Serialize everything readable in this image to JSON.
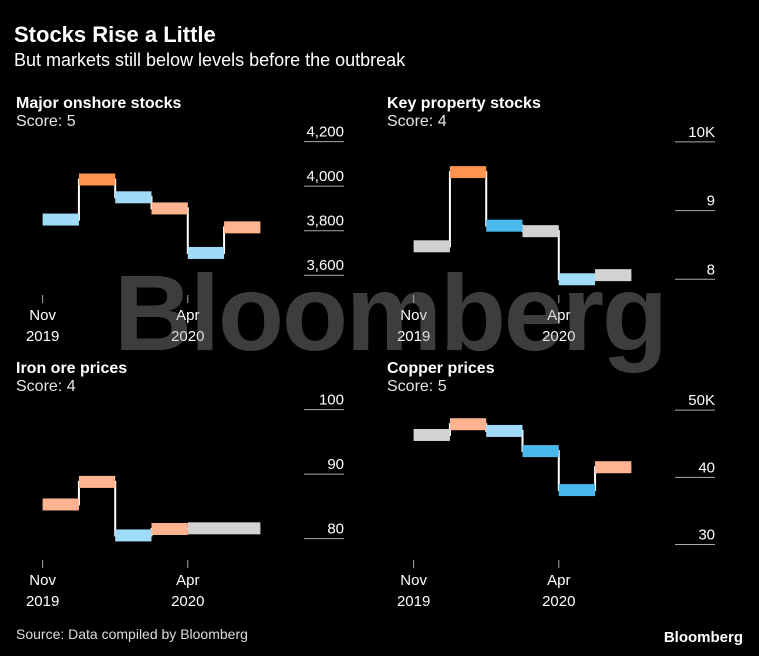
{
  "header": {
    "title": "Stocks Rise a Little",
    "subtitle": "But markets still below levels before the outbreak"
  },
  "footer": {
    "source": "Source: Data compiled by Bloomberg",
    "logo": "Bloomberg"
  },
  "watermark": "Bloomberg",
  "colors": {
    "orange": "#ff9450",
    "light_orange": "#ffb390",
    "light_blue": "#a0dcf8",
    "blue": "#4ab8ea",
    "gray": "#d2d2d2",
    "axis": "#aaaaaa"
  },
  "chart_data": [
    {
      "type": "line",
      "title": "Major onshore stocks",
      "score": "Score: 5",
      "y_ticks": [
        "4,200",
        "4,000",
        "3,800",
        "3,600"
      ],
      "y_tick_values": [
        4200,
        4000,
        3800,
        3600
      ],
      "ylim": [
        3520,
        4230
      ],
      "x_ticks": [
        {
          "line1": "Nov",
          "line2": "2019",
          "at": 0.0
        },
        {
          "line1": "Apr",
          "line2": "2020",
          "at": 4.0
        }
      ],
      "xlim": [
        -0.1,
        6.1
      ],
      "step_data": [
        {
          "x0": 0,
          "x1": 1,
          "value": 3850,
          "color": "light_blue"
        },
        {
          "x0": 1,
          "x1": 2,
          "value": 4030,
          "color": "orange"
        },
        {
          "x0": 2,
          "x1": 3,
          "value": 3950,
          "color": "light_blue"
        },
        {
          "x0": 3,
          "x1": 4,
          "value": 3900,
          "color": "light_orange"
        },
        {
          "x0": 4,
          "x1": 5,
          "value": 3700,
          "color": "light_blue"
        },
        {
          "x0": 5,
          "x1": 6,
          "value": 3815,
          "color": "light_orange"
        }
      ]
    },
    {
      "type": "line",
      "title": "Key property stocks",
      "score": "Score: 4",
      "y_ticks": [
        "10K",
        "9",
        "8"
      ],
      "y_tick_values": [
        10000,
        9000,
        8000
      ],
      "ylim": [
        7800,
        10100
      ],
      "x_ticks": [
        {
          "line1": "Nov",
          "line2": "2019",
          "at": 0.0
        },
        {
          "line1": "Apr",
          "line2": "2020",
          "at": 4.0
        }
      ],
      "xlim": [
        -0.1,
        6.1
      ],
      "step_data": [
        {
          "x0": 0,
          "x1": 1,
          "value": 8480,
          "color": "gray"
        },
        {
          "x0": 1,
          "x1": 2,
          "value": 9560,
          "color": "orange"
        },
        {
          "x0": 2,
          "x1": 3,
          "value": 8780,
          "color": "blue"
        },
        {
          "x0": 3,
          "x1": 4,
          "value": 8700,
          "color": "gray"
        },
        {
          "x0": 4,
          "x1": 5,
          "value": 8000,
          "color": "light_blue"
        },
        {
          "x0": 5,
          "x1": 6,
          "value": 8060,
          "color": "gray"
        }
      ]
    },
    {
      "type": "line",
      "title": "Iron ore prices",
      "score": "Score: 4",
      "y_ticks": [
        "100",
        "90",
        "80"
      ],
      "y_tick_values": [
        100,
        90,
        80
      ],
      "ylim": [
        77,
        101.5
      ],
      "x_ticks": [
        {
          "line1": "Nov",
          "line2": "2019",
          "at": 0.0
        },
        {
          "line1": "Apr",
          "line2": "2020",
          "at": 4.0
        }
      ],
      "xlim": [
        -0.1,
        6.1
      ],
      "step_data": [
        {
          "x0": 0,
          "x1": 1,
          "value": 85.3,
          "color": "light_orange"
        },
        {
          "x0": 1,
          "x1": 2,
          "value": 88.8,
          "color": "light_orange"
        },
        {
          "x0": 2,
          "x1": 3,
          "value": 80.5,
          "color": "light_blue"
        },
        {
          "x0": 3,
          "x1": 4,
          "value": 81.5,
          "color": "light_orange"
        },
        {
          "x0": 4,
          "x1": 6,
          "value": 81.6,
          "color": "gray"
        }
      ]
    },
    {
      "type": "line",
      "title": "Copper prices",
      "score": "Score: 5",
      "y_ticks": [
        "50K",
        "40",
        "30"
      ],
      "y_tick_values": [
        50000,
        40000,
        30000
      ],
      "ylim": [
        28000,
        51500
      ],
      "x_ticks": [
        {
          "line1": "Nov",
          "line2": "2019",
          "at": 0.0
        },
        {
          "line1": "Apr",
          "line2": "2020",
          "at": 4.0
        }
      ],
      "xlim": [
        -0.1,
        6.1
      ],
      "step_data": [
        {
          "x0": 0,
          "x1": 1,
          "value": 46300,
          "color": "gray"
        },
        {
          "x0": 1,
          "x1": 2,
          "value": 47900,
          "color": "light_orange"
        },
        {
          "x0": 2,
          "x1": 3,
          "value": 46900,
          "color": "light_blue"
        },
        {
          "x0": 3,
          "x1": 4,
          "value": 43900,
          "color": "blue"
        },
        {
          "x0": 4,
          "x1": 5,
          "value": 38100,
          "color": "blue"
        },
        {
          "x0": 5,
          "x1": 6,
          "value": 41500,
          "color": "light_orange"
        }
      ]
    }
  ]
}
